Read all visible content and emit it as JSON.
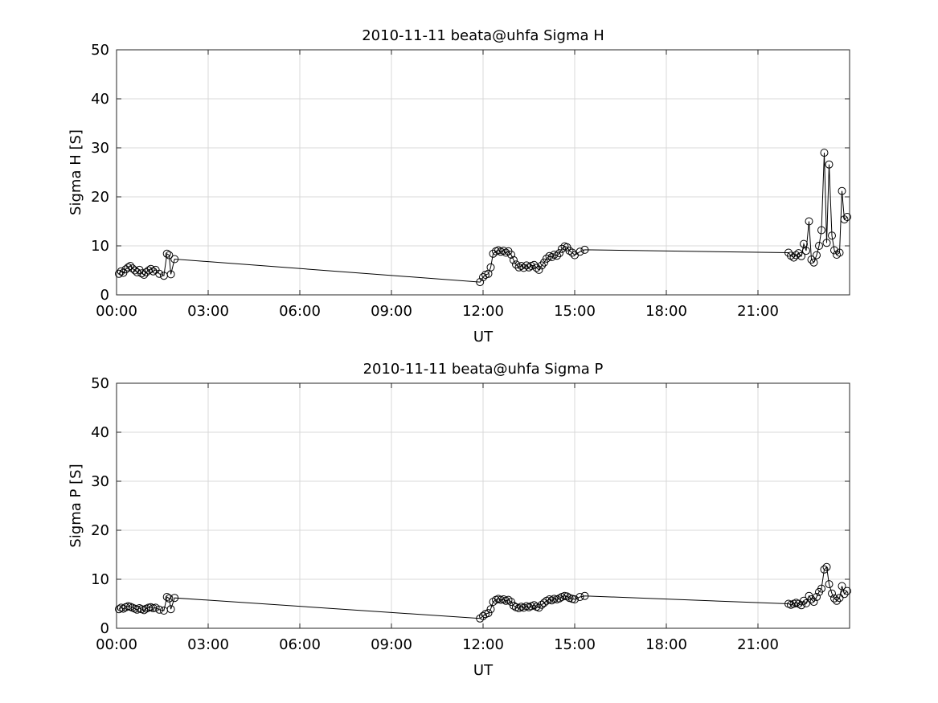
{
  "figure": {
    "background_color": "#ffffff"
  },
  "chart_style": {
    "axis_color": "#262626",
    "grid_color": "#d9d9d9",
    "line_color": "#000000",
    "marker_fill": "none"
  },
  "chart_data": [
    {
      "id": "sigma-h",
      "type": "line",
      "title": "2010-11-11  beata@uhfa Sigma H",
      "xlabel": "UT",
      "ylabel": "Sigma H [S]",
      "xlim": [
        0,
        24
      ],
      "ylim": [
        0,
        50
      ],
      "xticks": [
        0,
        3,
        6,
        9,
        12,
        15,
        18,
        21
      ],
      "xtick_labels": [
        "00:00",
        "03:00",
        "06:00",
        "09:00",
        "12:00",
        "15:00",
        "18:00",
        "21:00"
      ],
      "yticks": [
        0,
        10,
        20,
        30,
        40,
        50
      ],
      "ytick_labels": [
        "0",
        "10",
        "20",
        "30",
        "40",
        "50"
      ],
      "grid": true,
      "legend": "none",
      "marker": "open-circle",
      "series": [
        {
          "name": "Sigma H",
          "points": [
            [
              0.08,
              4.3
            ],
            [
              0.15,
              4.8
            ],
            [
              0.22,
              4.5
            ],
            [
              0.3,
              5.2
            ],
            [
              0.38,
              5.6
            ],
            [
              0.45,
              5.9
            ],
            [
              0.52,
              5.4
            ],
            [
              0.6,
              5.0
            ],
            [
              0.67,
              4.6
            ],
            [
              0.75,
              5.1
            ],
            [
              0.82,
              4.4
            ],
            [
              0.9,
              4.1
            ],
            [
              0.97,
              4.6
            ],
            [
              1.05,
              5.0
            ],
            [
              1.12,
              5.3
            ],
            [
              1.2,
              4.8
            ],
            [
              1.28,
              5.1
            ],
            [
              1.4,
              4.3
            ],
            [
              1.55,
              3.9
            ],
            [
              1.65,
              8.4
            ],
            [
              1.72,
              8.1
            ],
            [
              1.78,
              4.2
            ],
            [
              1.9,
              7.3
            ],
            [
              11.9,
              2.6
            ],
            [
              12.0,
              3.6
            ],
            [
              12.08,
              4.1
            ],
            [
              12.17,
              4.3
            ],
            [
              12.25,
              5.6
            ],
            [
              12.33,
              8.4
            ],
            [
              12.42,
              8.9
            ],
            [
              12.5,
              9.1
            ],
            [
              12.58,
              8.8
            ],
            [
              12.67,
              9.0
            ],
            [
              12.75,
              8.6
            ],
            [
              12.83,
              8.9
            ],
            [
              12.92,
              8.2
            ],
            [
              13.0,
              7.1
            ],
            [
              13.08,
              6.2
            ],
            [
              13.17,
              5.6
            ],
            [
              13.25,
              5.9
            ],
            [
              13.33,
              5.5
            ],
            [
              13.42,
              6.0
            ],
            [
              13.5,
              5.6
            ],
            [
              13.58,
              5.9
            ],
            [
              13.67,
              6.1
            ],
            [
              13.75,
              5.5
            ],
            [
              13.83,
              5.1
            ],
            [
              13.92,
              6.0
            ],
            [
              14.0,
              6.6
            ],
            [
              14.08,
              7.4
            ],
            [
              14.17,
              7.9
            ],
            [
              14.25,
              7.7
            ],
            [
              14.33,
              8.2
            ],
            [
              14.42,
              8.0
            ],
            [
              14.5,
              8.5
            ],
            [
              14.58,
              9.4
            ],
            [
              14.67,
              9.9
            ],
            [
              14.75,
              9.7
            ],
            [
              14.83,
              9.0
            ],
            [
              14.92,
              8.6
            ],
            [
              15.0,
              8.1
            ],
            [
              15.17,
              8.8
            ],
            [
              15.33,
              9.2
            ],
            [
              22.0,
              8.6
            ],
            [
              22.08,
              8.0
            ],
            [
              22.17,
              7.6
            ],
            [
              22.25,
              8.1
            ],
            [
              22.33,
              8.5
            ],
            [
              22.42,
              7.9
            ],
            [
              22.5,
              10.4
            ],
            [
              22.58,
              9.0
            ],
            [
              22.67,
              15.0
            ],
            [
              22.75,
              7.2
            ],
            [
              22.83,
              6.6
            ],
            [
              22.92,
              8.1
            ],
            [
              23.0,
              10.0
            ],
            [
              23.08,
              13.2
            ],
            [
              23.17,
              29.0
            ],
            [
              23.25,
              10.6
            ],
            [
              23.33,
              26.6
            ],
            [
              23.42,
              12.1
            ],
            [
              23.5,
              9.1
            ],
            [
              23.58,
              8.2
            ],
            [
              23.67,
              8.6
            ],
            [
              23.75,
              21.2
            ],
            [
              23.83,
              15.4
            ],
            [
              23.92,
              15.9
            ]
          ]
        }
      ]
    },
    {
      "id": "sigma-p",
      "type": "line",
      "title": "2010-11-11  beata@uhfa Sigma P",
      "xlabel": "UT",
      "ylabel": "Sigma P [S]",
      "xlim": [
        0,
        24
      ],
      "ylim": [
        0,
        50
      ],
      "xticks": [
        0,
        3,
        6,
        9,
        12,
        15,
        18,
        21
      ],
      "xtick_labels": [
        "00:00",
        "03:00",
        "06:00",
        "09:00",
        "12:00",
        "15:00",
        "18:00",
        "21:00"
      ],
      "yticks": [
        0,
        10,
        20,
        30,
        40,
        50
      ],
      "ytick_labels": [
        "0",
        "10",
        "20",
        "30",
        "40",
        "50"
      ],
      "grid": true,
      "legend": "none",
      "marker": "open-circle",
      "series": [
        {
          "name": "Sigma P",
          "points": [
            [
              0.08,
              3.9
            ],
            [
              0.15,
              4.2
            ],
            [
              0.22,
              4.0
            ],
            [
              0.3,
              4.3
            ],
            [
              0.38,
              4.5
            ],
            [
              0.45,
              4.4
            ],
            [
              0.52,
              4.2
            ],
            [
              0.6,
              4.0
            ],
            [
              0.67,
              3.8
            ],
            [
              0.75,
              4.1
            ],
            [
              0.82,
              3.9
            ],
            [
              0.9,
              3.7
            ],
            [
              0.97,
              4.0
            ],
            [
              1.05,
              4.2
            ],
            [
              1.12,
              4.3
            ],
            [
              1.2,
              4.1
            ],
            [
              1.28,
              4.2
            ],
            [
              1.4,
              3.8
            ],
            [
              1.55,
              3.6
            ],
            [
              1.65,
              6.4
            ],
            [
              1.72,
              6.1
            ],
            [
              1.78,
              3.9
            ],
            [
              1.9,
              6.2
            ],
            [
              11.9,
              2.0
            ],
            [
              12.0,
              2.5
            ],
            [
              12.08,
              2.9
            ],
            [
              12.17,
              3.1
            ],
            [
              12.25,
              3.9
            ],
            [
              12.33,
              5.4
            ],
            [
              12.42,
              5.8
            ],
            [
              12.5,
              6.0
            ],
            [
              12.58,
              5.8
            ],
            [
              12.67,
              5.9
            ],
            [
              12.75,
              5.6
            ],
            [
              12.83,
              5.8
            ],
            [
              12.92,
              5.4
            ],
            [
              13.0,
              4.6
            ],
            [
              13.08,
              4.3
            ],
            [
              13.17,
              4.1
            ],
            [
              13.25,
              4.4
            ],
            [
              13.33,
              4.2
            ],
            [
              13.42,
              4.5
            ],
            [
              13.5,
              4.3
            ],
            [
              13.58,
              4.5
            ],
            [
              13.67,
              4.7
            ],
            [
              13.75,
              4.4
            ],
            [
              13.83,
              4.2
            ],
            [
              13.92,
              4.8
            ],
            [
              14.0,
              5.2
            ],
            [
              14.08,
              5.6
            ],
            [
              14.17,
              5.9
            ],
            [
              14.25,
              5.7
            ],
            [
              14.33,
              6.0
            ],
            [
              14.42,
              5.9
            ],
            [
              14.5,
              6.1
            ],
            [
              14.58,
              6.4
            ],
            [
              14.67,
              6.6
            ],
            [
              14.75,
              6.5
            ],
            [
              14.83,
              6.2
            ],
            [
              14.92,
              6.0
            ],
            [
              15.0,
              5.9
            ],
            [
              15.17,
              6.4
            ],
            [
              15.33,
              6.6
            ],
            [
              22.0,
              5.0
            ],
            [
              22.08,
              4.8
            ],
            [
              22.17,
              5.0
            ],
            [
              22.25,
              5.2
            ],
            [
              22.33,
              5.0
            ],
            [
              22.42,
              4.7
            ],
            [
              22.5,
              5.6
            ],
            [
              22.58,
              5.1
            ],
            [
              22.67,
              6.6
            ],
            [
              22.75,
              5.9
            ],
            [
              22.83,
              5.4
            ],
            [
              22.92,
              6.4
            ],
            [
              23.0,
              7.4
            ],
            [
              23.08,
              8.1
            ],
            [
              23.17,
              12.0
            ],
            [
              23.25,
              12.5
            ],
            [
              23.33,
              9.0
            ],
            [
              23.42,
              7.1
            ],
            [
              23.5,
              6.1
            ],
            [
              23.58,
              5.6
            ],
            [
              23.67,
              6.2
            ],
            [
              23.75,
              8.6
            ],
            [
              23.83,
              7.0
            ],
            [
              23.92,
              7.6
            ]
          ]
        }
      ]
    }
  ]
}
